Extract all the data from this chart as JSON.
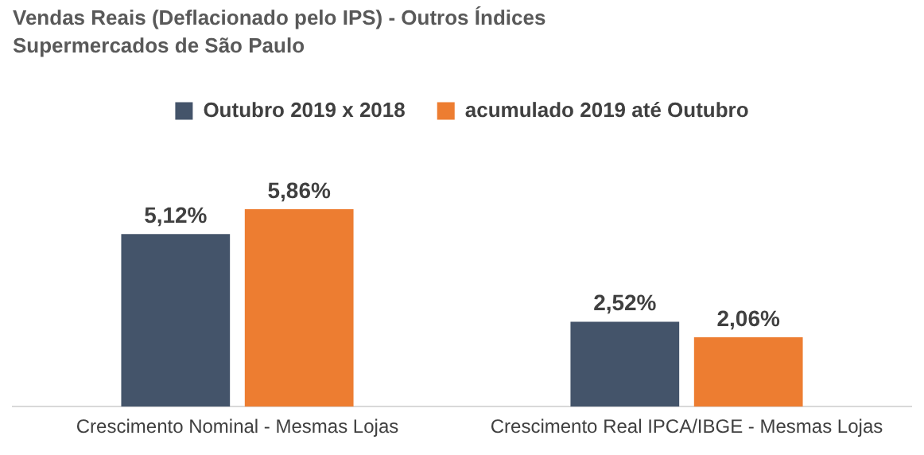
{
  "chart_data": {
    "type": "bar",
    "title": "Vendas Reais (Deflacionado pelo IPS) - Outros Índices",
    "subtitle": "Supermercados de São Paulo",
    "categories": [
      "Crescimento Nominal - Mesmas Lojas",
      "Crescimento Real IPCA/IBGE - Mesmas Lojas"
    ],
    "series": [
      {
        "name": "Outubro 2019 x 2018",
        "color": "#44546a",
        "values": [
          5.12,
          2.52
        ],
        "value_labels": [
          "5,12%",
          "2,52%"
        ]
      },
      {
        "name": "acumulado 2019 até Outubro",
        "color": "#ed7d31",
        "values": [
          5.86,
          2.06
        ],
        "value_labels": [
          "5,86%",
          "2,06%"
        ]
      }
    ],
    "legend": "top",
    "grid": false
  }
}
